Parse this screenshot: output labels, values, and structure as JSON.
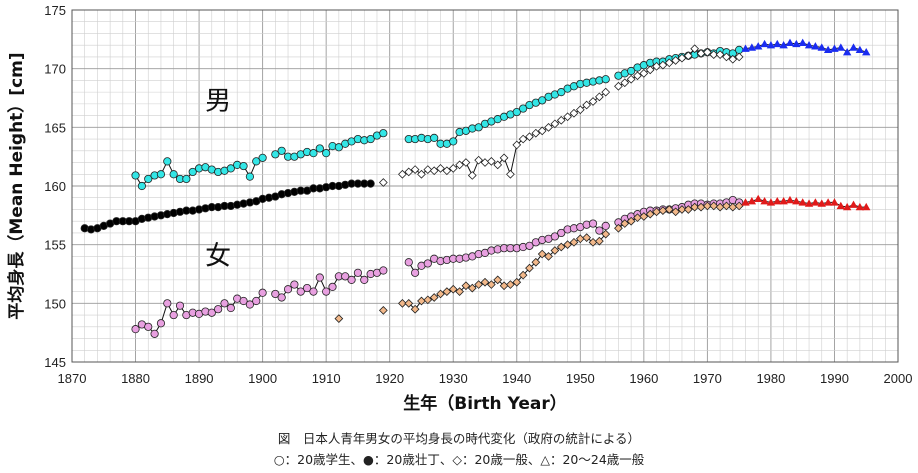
{
  "chart_data": {
    "type": "scatter",
    "xlabel": "生年（Birth Year）",
    "ylabel": "平均身長（Mean Height）[cm]",
    "xlim": [
      1870,
      2000
    ],
    "ylim": [
      145,
      175
    ],
    "x_ticks": [
      1870,
      1880,
      1890,
      1900,
      1910,
      1920,
      1930,
      1940,
      1950,
      1960,
      1970,
      1980,
      1990,
      2000
    ],
    "y_ticks": [
      145,
      150,
      155,
      160,
      165,
      170,
      175
    ],
    "grid": true,
    "annotations": [
      {
        "text": "男",
        "x": 1893,
        "y": 166.5
      },
      {
        "text": "女",
        "x": 1893,
        "y": 153.3
      }
    ],
    "series": [
      {
        "group": "male",
        "marker": "circle-open",
        "color": "#33e6e6",
        "x": [
          1880,
          1881,
          1882,
          1883,
          1884,
          1885,
          1886,
          1887,
          1888,
          1889,
          1890,
          1891,
          1892,
          1893,
          1894,
          1895,
          1896,
          1897,
          1898,
          1899,
          1900,
          1902,
          1903,
          1904,
          1905,
          1906,
          1907,
          1908,
          1909,
          1910,
          1911,
          1912,
          1913,
          1914,
          1915,
          1916,
          1917,
          1918,
          1919,
          1923,
          1924,
          1925,
          1926,
          1927,
          1928,
          1929,
          1930,
          1931,
          1932,
          1933,
          1934,
          1935,
          1936,
          1937,
          1938,
          1939,
          1940,
          1941,
          1942,
          1943,
          1944,
          1945,
          1946,
          1947,
          1948,
          1949,
          1950,
          1951,
          1952,
          1953,
          1954,
          1956,
          1957,
          1958,
          1959,
          1960,
          1961,
          1962,
          1963,
          1964,
          1965,
          1966,
          1967,
          1968,
          1969,
          1970,
          1971,
          1972,
          1973,
          1974,
          1975
        ],
        "y": [
          160.9,
          160.0,
          160.6,
          160.9,
          161.0,
          162.1,
          161.0,
          160.6,
          160.6,
          161.2,
          161.5,
          161.6,
          161.4,
          161.2,
          161.3,
          161.5,
          161.8,
          161.7,
          160.8,
          162.1,
          162.4,
          162.7,
          163.0,
          162.5,
          162.5,
          162.7,
          162.9,
          162.8,
          163.2,
          162.8,
          163.4,
          163.3,
          163.6,
          163.8,
          164.0,
          163.9,
          164.0,
          164.3,
          164.5,
          164.0,
          164.0,
          164.1,
          164.0,
          164.1,
          163.6,
          163.6,
          163.8,
          164.6,
          164.7,
          164.9,
          165.0,
          165.3,
          165.5,
          165.7,
          165.9,
          166.1,
          166.3,
          166.6,
          166.9,
          167.1,
          167.3,
          167.6,
          167.8,
          168.0,
          168.3,
          168.5,
          168.7,
          168.8,
          168.9,
          169.0,
          169.1,
          169.4,
          169.6,
          169.8,
          170.1,
          170.3,
          170.5,
          170.6,
          170.6,
          170.8,
          170.9,
          171.0,
          171.1,
          171.2,
          171.3,
          171.4,
          171.3,
          171.5,
          171.4,
          171.3,
          171.6
        ]
      },
      {
        "group": "male",
        "marker": "circle-filled",
        "color": "#000000",
        "x": [
          1872,
          1873,
          1874,
          1875,
          1876,
          1877,
          1878,
          1879,
          1880,
          1881,
          1882,
          1883,
          1884,
          1885,
          1886,
          1887,
          1888,
          1889,
          1890,
          1891,
          1892,
          1893,
          1894,
          1895,
          1896,
          1897,
          1898,
          1899,
          1900,
          1901,
          1902,
          1903,
          1904,
          1905,
          1906,
          1907,
          1908,
          1909,
          1910,
          1911,
          1912,
          1913,
          1914,
          1915,
          1916,
          1917
        ],
        "y": [
          156.4,
          156.3,
          156.4,
          156.6,
          156.8,
          157.0,
          157.0,
          157.0,
          157.0,
          157.2,
          157.3,
          157.4,
          157.5,
          157.6,
          157.7,
          157.8,
          157.9,
          157.9,
          158.0,
          158.1,
          158.2,
          158.2,
          158.3,
          158.3,
          158.4,
          158.5,
          158.6,
          158.7,
          158.9,
          159.0,
          159.1,
          159.3,
          159.4,
          159.5,
          159.6,
          159.6,
          159.8,
          159.8,
          159.9,
          160.0,
          160.0,
          160.1,
          160.2,
          160.2,
          160.2,
          160.2
        ]
      },
      {
        "group": "male",
        "marker": "diamond-open",
        "color": "#ffffff",
        "x": [
          1919,
          1922,
          1923,
          1924,
          1925,
          1926,
          1927,
          1928,
          1929,
          1930,
          1931,
          1932,
          1933,
          1934,
          1935,
          1936,
          1937,
          1938,
          1939,
          1940,
          1941,
          1942,
          1943,
          1944,
          1945,
          1946,
          1947,
          1948,
          1949,
          1950,
          1951,
          1952,
          1953,
          1954,
          1956,
          1957,
          1958,
          1959,
          1960,
          1961,
          1962,
          1963,
          1964,
          1965,
          1966,
          1967,
          1968,
          1969,
          1970,
          1971,
          1972,
          1973,
          1974,
          1975
        ],
        "y": [
          160.3,
          161.0,
          161.2,
          161.4,
          161.0,
          161.4,
          161.3,
          161.5,
          161.3,
          161.5,
          161.8,
          162.0,
          160.9,
          162.2,
          162.0,
          162.1,
          161.8,
          162.4,
          161.0,
          163.5,
          164.0,
          164.2,
          164.5,
          164.7,
          165.0,
          165.3,
          165.6,
          165.9,
          166.2,
          166.5,
          166.9,
          167.2,
          167.6,
          168.0,
          168.5,
          168.8,
          169.1,
          169.4,
          169.6,
          169.9,
          170.2,
          170.3,
          170.5,
          170.7,
          170.9,
          171.1,
          171.7,
          171.3,
          171.4,
          171.2,
          171.2,
          171.0,
          170.8,
          171.0
        ]
      },
      {
        "group": "male",
        "marker": "triangle-filled",
        "color": "#1a2cf0",
        "x": [
          1976,
          1977,
          1978,
          1979,
          1980,
          1981,
          1982,
          1983,
          1984,
          1985,
          1986,
          1987,
          1988,
          1989,
          1990,
          1991,
          1992,
          1993,
          1994,
          1995
        ],
        "y": [
          171.7,
          171.8,
          171.9,
          172.1,
          172.0,
          172.1,
          172.0,
          172.2,
          172.1,
          172.2,
          172.0,
          171.9,
          171.8,
          171.6,
          171.7,
          171.8,
          171.4,
          171.8,
          171.6,
          171.4
        ]
      },
      {
        "group": "female",
        "marker": "circle-open",
        "color": "#e8a0e0",
        "x": [
          1880,
          1881,
          1882,
          1883,
          1884,
          1885,
          1886,
          1887,
          1888,
          1889,
          1890,
          1891,
          1892,
          1893,
          1894,
          1895,
          1896,
          1897,
          1898,
          1899,
          1900,
          1902,
          1903,
          1904,
          1905,
          1906,
          1907,
          1908,
          1909,
          1910,
          1911,
          1912,
          1913,
          1914,
          1915,
          1916,
          1917,
          1918,
          1919,
          1923,
          1924,
          1925,
          1926,
          1927,
          1928,
          1929,
          1930,
          1931,
          1932,
          1933,
          1934,
          1935,
          1936,
          1937,
          1938,
          1939,
          1940,
          1941,
          1942,
          1943,
          1944,
          1945,
          1946,
          1947,
          1948,
          1949,
          1950,
          1951,
          1952,
          1953,
          1954,
          1956,
          1957,
          1958,
          1959,
          1960,
          1961,
          1962,
          1963,
          1964,
          1965,
          1966,
          1967,
          1968,
          1969,
          1970,
          1971,
          1972,
          1973,
          1974,
          1975
        ],
        "y": [
          147.8,
          148.2,
          148.0,
          147.4,
          148.3,
          150.0,
          149.0,
          149.8,
          149.0,
          149.2,
          149.1,
          149.3,
          149.2,
          149.5,
          150.0,
          149.6,
          150.4,
          150.2,
          149.9,
          150.2,
          150.9,
          150.8,
          150.5,
          151.2,
          151.6,
          151.0,
          151.3,
          151.0,
          152.2,
          151.0,
          151.4,
          152.3,
          152.3,
          152.0,
          152.6,
          152.0,
          152.5,
          152.6,
          152.8,
          153.5,
          152.6,
          153.2,
          153.4,
          153.8,
          153.6,
          153.7,
          153.8,
          153.8,
          153.9,
          154.0,
          154.2,
          154.3,
          154.5,
          154.6,
          154.7,
          154.7,
          154.7,
          154.8,
          154.9,
          155.2,
          155.4,
          155.5,
          155.7,
          156.0,
          156.3,
          156.4,
          156.5,
          156.7,
          156.8,
          156.2,
          156.6,
          156.9,
          157.2,
          157.4,
          157.6,
          157.8,
          157.9,
          157.9,
          158.0,
          158.0,
          158.1,
          158.2,
          158.4,
          158.5,
          158.5,
          158.4,
          158.5,
          158.5,
          158.6,
          158.8,
          158.6
        ]
      },
      {
        "group": "female",
        "marker": "diamond-filled",
        "color": "#f2b88a",
        "x": [
          1912,
          1919,
          1922,
          1923,
          1924,
          1925,
          1926,
          1927,
          1928,
          1929,
          1930,
          1931,
          1932,
          1933,
          1934,
          1935,
          1936,
          1937,
          1938,
          1939,
          1940,
          1941,
          1942,
          1943,
          1944,
          1945,
          1946,
          1947,
          1948,
          1949,
          1950,
          1951,
          1952,
          1953,
          1954,
          1956,
          1957,
          1958,
          1959,
          1960,
          1961,
          1962,
          1963,
          1964,
          1965,
          1966,
          1967,
          1968,
          1969,
          1970,
          1971,
          1972,
          1973,
          1974,
          1975
        ],
        "y": [
          148.7,
          149.4,
          150.0,
          150.0,
          149.5,
          150.2,
          150.3,
          150.5,
          150.8,
          151.0,
          151.2,
          151.0,
          151.5,
          151.3,
          151.6,
          151.8,
          151.6,
          152.0,
          151.5,
          151.6,
          151.8,
          152.4,
          153.0,
          153.5,
          154.2,
          154.0,
          154.5,
          154.8,
          155.0,
          155.2,
          155.5,
          155.6,
          155.2,
          155.3,
          155.9,
          156.4,
          156.8,
          157.0,
          157.3,
          157.4,
          157.6,
          157.8,
          157.9,
          158.0,
          157.8,
          158.0,
          158.0,
          158.2,
          158.2,
          158.3,
          158.3,
          158.2,
          158.3,
          158.2,
          158.3
        ]
      },
      {
        "group": "female",
        "marker": "triangle-filled",
        "color": "#e01a1a",
        "x": [
          1976,
          1977,
          1978,
          1979,
          1980,
          1981,
          1982,
          1983,
          1984,
          1985,
          1986,
          1987,
          1988,
          1989,
          1990,
          1991,
          1992,
          1993,
          1994,
          1995
        ],
        "y": [
          158.6,
          158.7,
          158.9,
          158.7,
          158.6,
          158.7,
          158.7,
          158.8,
          158.7,
          158.6,
          158.5,
          158.6,
          158.5,
          158.6,
          158.6,
          158.3,
          158.2,
          158.4,
          158.2,
          158.2
        ]
      }
    ]
  },
  "caption": {
    "line1": "図　日本人青年男女の平均身長の時代変化（政府の統計による）",
    "line2": "○：20歳学生、●：20歳壮丁、◇：20歳一般、△：20〜24歳一般"
  }
}
